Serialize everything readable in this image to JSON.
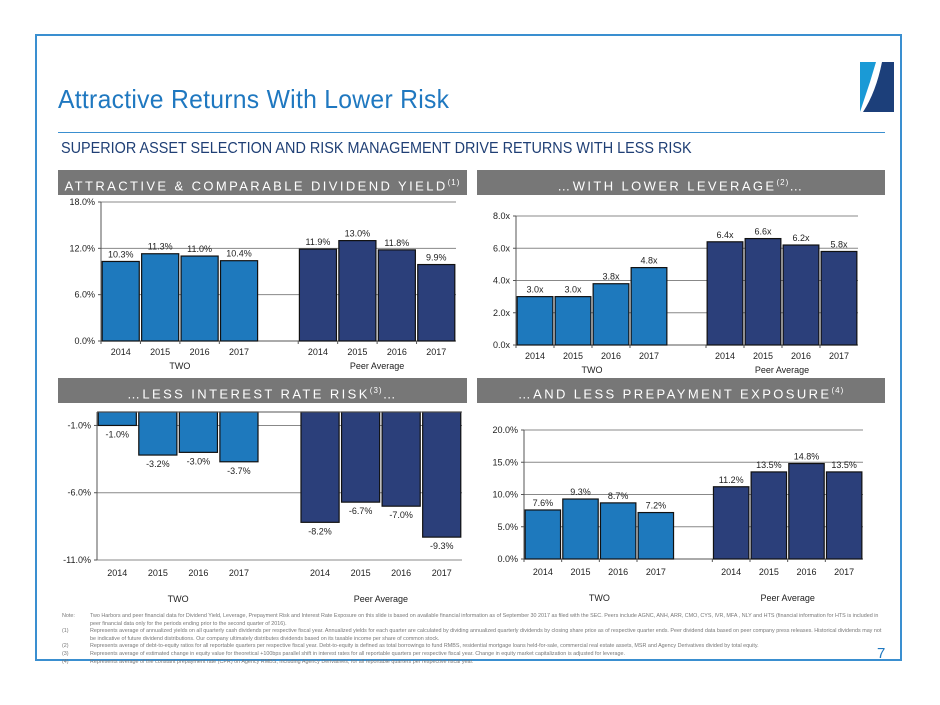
{
  "header": {
    "title": "Attractive Returns With Lower Risk",
    "subtitle": "SUPERIOR ASSET SELECTION AND RISK MANAGEMENT DRIVE RETURNS WITH LESS RISK",
    "logo_icon": "two-harbors-logo-icon"
  },
  "colors": {
    "accent": "#1f78c0",
    "frame": "#3a8fd0",
    "two_bar": "#1e79bd",
    "peer_bar": "#2b3f7a",
    "panel_header": "#777777",
    "gridline": "#888888"
  },
  "panels": [
    {
      "heading": "ATTRACTIVE & COMPARABLE DIVIDEND YIELD",
      "superscript": "(1)"
    },
    {
      "heading": "…WITH LOWER LEVERAGE",
      "superscript": "(2)",
      "suffix": "…"
    },
    {
      "heading": "…LESS INTEREST RATE RISK",
      "superscript": "(3)",
      "suffix": "…"
    },
    {
      "heading": "…AND LESS PREPAYMENT EXPOSURE",
      "superscript": "(4)"
    }
  ],
  "chart_data": [
    {
      "type": "bar",
      "title": "ATTRACTIVE & COMPARABLE DIVIDEND YIELD(1)",
      "categories": [
        "2014",
        "2015",
        "2016",
        "2017"
      ],
      "groups": [
        "TWO",
        "Peer Average"
      ],
      "series": [
        {
          "name": "TWO",
          "values": [
            10.3,
            11.3,
            11.0,
            10.4
          ],
          "labels": [
            "10.3%",
            "11.3%",
            "11.0%",
            "10.4%"
          ]
        },
        {
          "name": "Peer Average",
          "values": [
            11.9,
            13.0,
            11.8,
            9.9
          ],
          "labels": [
            "11.9%",
            "13.0%",
            "11.8%",
            "9.9%"
          ]
        }
      ],
      "yticks": [
        "0.0%",
        "6.0%",
        "12.0%",
        "18.0%"
      ],
      "ytick_values": [
        0,
        6,
        12,
        18
      ],
      "ylim": [
        0,
        18
      ],
      "xlabel": "",
      "ylabel": "",
      "grid": true
    },
    {
      "type": "bar",
      "title": "…WITH LOWER LEVERAGE(2)…",
      "categories": [
        "2014",
        "2015",
        "2016",
        "2017"
      ],
      "groups": [
        "TWO",
        "Peer Average"
      ],
      "series": [
        {
          "name": "TWO",
          "values": [
            3.0,
            3.0,
            3.8,
            4.8
          ],
          "labels": [
            "3.0x",
            "3.0x",
            "3.8x",
            "4.8x"
          ]
        },
        {
          "name": "Peer Average",
          "values": [
            6.4,
            6.6,
            6.2,
            5.8
          ],
          "labels": [
            "6.4x",
            "6.6x",
            "6.2x",
            "5.8x"
          ]
        }
      ],
      "yticks": [
        "0.0x",
        "2.0x",
        "4.0x",
        "6.0x",
        "8.0x"
      ],
      "ytick_values": [
        0,
        2,
        4,
        6,
        8
      ],
      "ylim": [
        0,
        8
      ],
      "xlabel": "",
      "ylabel": "",
      "grid": true
    },
    {
      "type": "bar",
      "title": "…LESS INTEREST RATE RISK(3)…",
      "categories": [
        "2014",
        "2015",
        "2016",
        "2017"
      ],
      "groups": [
        "TWO",
        "Peer Average"
      ],
      "series": [
        {
          "name": "TWO",
          "values": [
            -1.0,
            -3.2,
            -3.0,
            -3.7
          ],
          "labels": [
            "-1.0%",
            "-3.2%",
            "-3.0%",
            "-3.7%"
          ]
        },
        {
          "name": "Peer Average",
          "values": [
            -8.2,
            -6.7,
            -7.0,
            -9.3
          ],
          "labels": [
            "-8.2%",
            "-6.7%",
            "-7.0%",
            "-9.3%"
          ]
        }
      ],
      "yticks": [
        "-11.0%",
        "-6.0%",
        "-1.0%"
      ],
      "ytick_values": [
        -11,
        -6,
        -1
      ],
      "ylim": [
        -11,
        0
      ],
      "xlabel": "",
      "ylabel": "",
      "grid": true
    },
    {
      "type": "bar",
      "title": "…AND LESS PREPAYMENT EXPOSURE(4)",
      "categories": [
        "2014",
        "2015",
        "2016",
        "2017"
      ],
      "groups": [
        "TWO",
        "Peer Average"
      ],
      "series": [
        {
          "name": "TWO",
          "values": [
            7.6,
            9.3,
            8.7,
            7.2
          ],
          "labels": [
            "7.6%",
            "9.3%",
            "8.7%",
            "7.2%"
          ]
        },
        {
          "name": "Peer Average",
          "values": [
            11.2,
            13.5,
            14.8,
            13.5
          ],
          "labels": [
            "11.2%",
            "13.5%",
            "14.8%",
            "13.5%"
          ]
        }
      ],
      "yticks": [
        "0.0%",
        "5.0%",
        "10.0%",
        "15.0%",
        "20.0%"
      ],
      "ytick_values": [
        0,
        5,
        10,
        15,
        20
      ],
      "ylim": [
        0,
        20
      ],
      "xlabel": "",
      "ylabel": "",
      "grid": true
    }
  ],
  "notes": [
    {
      "key": "Note:",
      "text": "Two Harbors and peer financial data for Dividend Yield, Leverage, Prepayment Risk and Interest Rate Exposure on this slide is based on available financial information as of September 30 2017 as filed with the SEC.  Peers include AGNC, ANH, ARR, CMO, CYS, IVR, MFA , NLY and HTS (financial information for HTS is included in peer financial data only for the periods ending prior to the second quarter of 2016)."
    },
    {
      "key": "(1)",
      "text": "Represents average of annualized yields on all quarterly cash dividends per respective fiscal year.  Annualized yields for each quarter are calculated by dividing annualized quarterly dividends by closing share price as of respective quarter ends. Peer dividend data based on peer company press releases. Historical dividends may not be indicative of future dividend distributions. Our company ultimately distributes dividends based on its taxable income per share of common stock."
    },
    {
      "key": "(2)",
      "text": "Represents average of debt-to-equity ratios for all reportable quarters per respective fiscal year.  Debt-to-equity is defined as total borrowings to fund RMBS, residential mortgage loans held-for-sale, commercial real estate assets, MSR and Agency Derivatives divided by total equity."
    },
    {
      "key": "(3)",
      "text": "Represents average of estimated change in equity value for theoretical +100bps parallel shift in interest rates for all reportable quarters per respective fiscal year. Change in equity market capitalization is adjusted for leverage."
    },
    {
      "key": "(4)",
      "text": "Represents average of the constant prepayment rate (CPR) on Agency RMBS, including Agency Derivatives, for all reportable quarters per respective fiscal year."
    }
  ],
  "page_number": "7"
}
